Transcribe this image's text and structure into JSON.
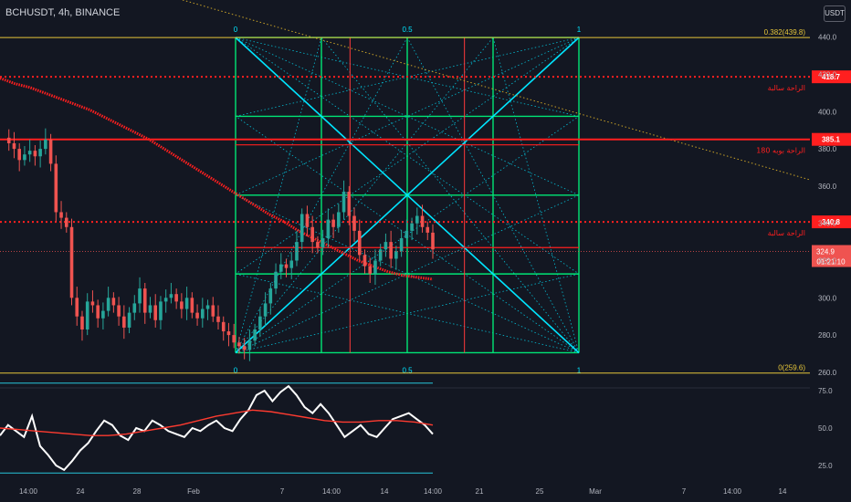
{
  "header": {
    "symbol": "BCHUSDT, 4h, BINANCE",
    "currency": "USDT"
  },
  "colors": {
    "background": "#131722",
    "grid_green": "#00e676",
    "diag_cyan": "#00e5ff",
    "fib_yellow": "#e6c63a",
    "level_red": "#ff1f1f",
    "ema_red": "#ff1f1f",
    "rsi_white": "#ffffff",
    "rsi_red": "#ff3b30",
    "rsi_band": "#26c6da"
  },
  "chart_data": {
    "type": "line",
    "title": "BCHUSDT, 4h, BINANCE",
    "price_axis": {
      "ylim": [
        250,
        448
      ],
      "ticks": [
        260,
        280,
        300,
        320,
        340,
        360,
        380,
        400,
        420,
        440
      ]
    },
    "rsi_axis": {
      "ylim": [
        12,
        88
      ],
      "ticks": [
        25,
        50,
        75
      ],
      "ticks_labels": [
        "25.0",
        "50.0",
        "75.0"
      ],
      "bands": [
        20,
        80
      ]
    },
    "x_ticks": [
      "14:00",
      "24",
      "28",
      "Feb",
      "7",
      "14:00",
      "14",
      "14:00",
      "21",
      "25",
      "Mar",
      "7",
      "14:00",
      "14"
    ],
    "fib_levels": [
      {
        "label": "0.382(439.8)",
        "value": 439.8
      },
      {
        "label": "0(259.6)",
        "value": 259.6
      }
    ],
    "gann_box": {
      "price_top": 439.8,
      "price_bottom": 270.5,
      "top_labels": [
        "0",
        "0.5",
        "1"
      ],
      "bottom_labels": [
        "0",
        "0.5",
        "1"
      ]
    },
    "levels": [
      {
        "value": 418.7,
        "badge": "418.7",
        "label": "الراحة سالبة",
        "style": "dotted"
      },
      {
        "value": 385.1,
        "badge": "385.1",
        "label": "الراحة بوبه 180",
        "style": "solid"
      },
      {
        "value": 340.8,
        "badge": "340.8",
        "label": "الراحة سالبة",
        "style": "dotted"
      }
    ],
    "current_price": {
      "value": 324.9,
      "label": "324.9",
      "countdown": "01:21:10"
    },
    "price_series": [
      386,
      383,
      380,
      374,
      377,
      379,
      376,
      380,
      385,
      372,
      346,
      343,
      338,
      300,
      290,
      283,
      298,
      296,
      289,
      293,
      300,
      296,
      290,
      284,
      292,
      297,
      305,
      292,
      296,
      288,
      298,
      300,
      302,
      298,
      294,
      300,
      292,
      289,
      294,
      296,
      290,
      287,
      282,
      280,
      276,
      274,
      272,
      277,
      283,
      290,
      297,
      305,
      314,
      318,
      316,
      320,
      330,
      345,
      338,
      330,
      327,
      332,
      342,
      338,
      346,
      357,
      344,
      336,
      323,
      317,
      313,
      320,
      326,
      330,
      321,
      325,
      332,
      336,
      340,
      344,
      338,
      335,
      326
    ],
    "ema_series": [
      418,
      415,
      413,
      410,
      407,
      404,
      401,
      397,
      393,
      389,
      385,
      380,
      375,
      370,
      365,
      360,
      355,
      350,
      345,
      341,
      336,
      332,
      328,
      324,
      320,
      317,
      314,
      312,
      311,
      310
    ],
    "rsi_series": [
      45,
      52,
      48,
      44,
      58,
      38,
      32,
      25,
      22,
      28,
      35,
      40,
      48,
      55,
      52,
      45,
      42,
      50,
      48,
      55,
      52,
      48,
      46,
      44,
      50,
      48,
      52,
      55,
      50,
      48,
      56,
      62,
      72,
      75,
      68,
      74,
      78,
      72,
      64,
      60,
      66,
      60,
      52,
      44,
      48,
      52,
      46,
      44,
      50,
      56,
      58,
      60,
      56,
      52,
      46
    ],
    "rsi_signal": [
      50,
      49,
      48,
      47,
      46,
      45,
      45,
      46,
      48,
      50,
      52,
      55,
      58,
      60,
      62,
      61,
      59,
      57,
      55,
      54,
      54,
      55,
      55,
      54,
      52
    ]
  }
}
